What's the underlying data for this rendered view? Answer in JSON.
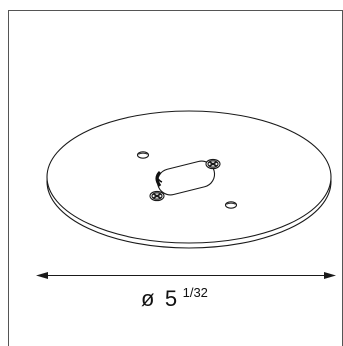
{
  "diagram": {
    "part": "round-mounting-plate",
    "dimension": {
      "symbol": "ø",
      "whole": "5",
      "fraction": "1/32"
    },
    "colors": {
      "line": "#1a1a1a",
      "frame": "#555555",
      "background": "#ffffff"
    }
  }
}
